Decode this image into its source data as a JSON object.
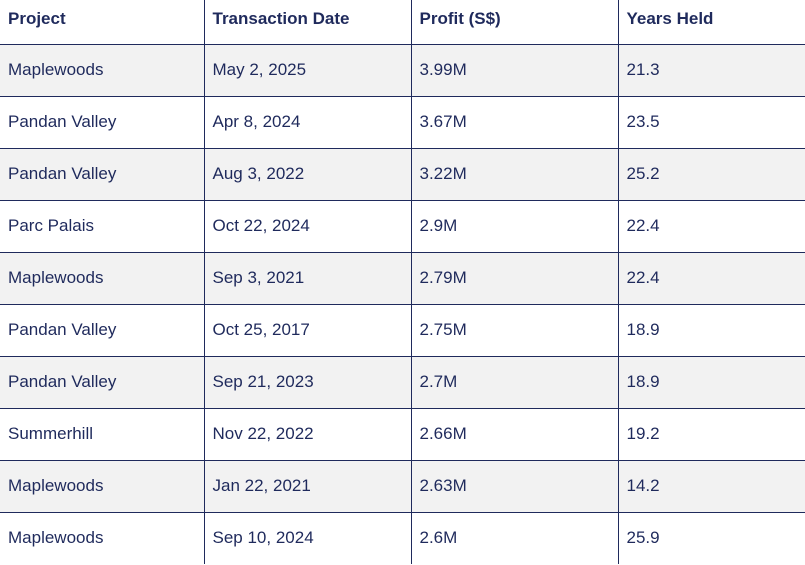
{
  "table": {
    "headers": [
      "Project",
      "Transaction Date",
      "Profit (S$)",
      "Years Held"
    ],
    "rows": [
      [
        "Maplewoods",
        "May 2, 2025",
        "3.99M",
        "21.3"
      ],
      [
        "Pandan Valley",
        "Apr 8, 2024",
        "3.67M",
        "23.5"
      ],
      [
        "Pandan Valley",
        "Aug 3, 2022",
        "3.22M",
        "25.2"
      ],
      [
        "Parc Palais",
        "Oct 22, 2024",
        "2.9M",
        "22.4"
      ],
      [
        "Maplewoods",
        "Sep 3, 2021",
        "2.79M",
        "22.4"
      ],
      [
        "Pandan Valley",
        "Oct 25, 2017",
        "2.75M",
        "18.9"
      ],
      [
        "Pandan Valley",
        "Sep 21, 2023",
        "2.7M",
        "18.9"
      ],
      [
        "Summerhill",
        "Nov 22, 2022",
        "2.66M",
        "19.2"
      ],
      [
        "Maplewoods",
        "Jan 22, 2021",
        "2.63M",
        "14.2"
      ],
      [
        "Maplewoods",
        "Sep 10, 2024",
        "2.6M",
        "25.9"
      ]
    ]
  },
  "colors": {
    "text": "#1f2a5c",
    "border": "#1f2a5c",
    "row_alt": "#f2f2f2",
    "background": "#ffffff"
  }
}
